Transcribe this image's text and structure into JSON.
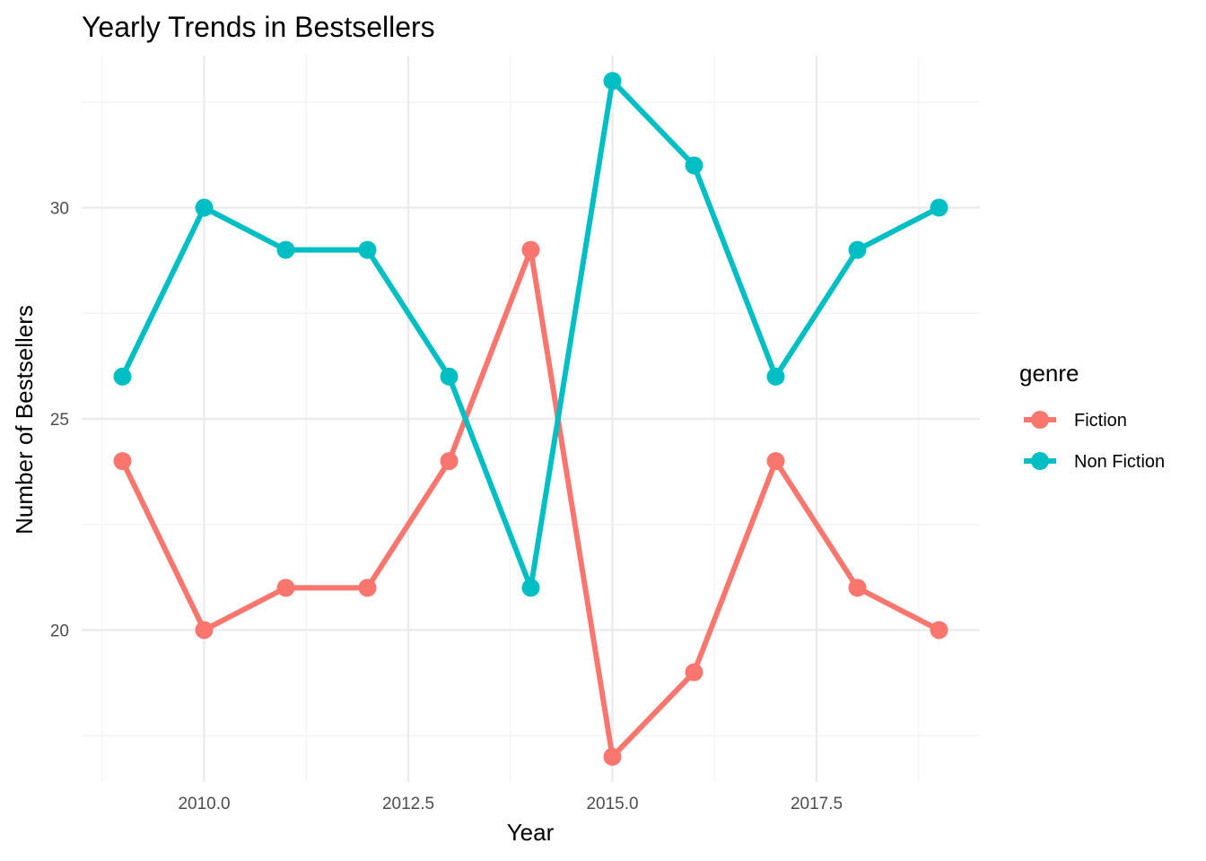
{
  "chart_data": {
    "type": "line",
    "title": "Yearly Trends in Bestsellers",
    "xlabel": "Year",
    "ylabel": "Number of Bestsellers",
    "x": [
      2009,
      2010,
      2011,
      2012,
      2013,
      2014,
      2015,
      2016,
      2017,
      2018,
      2019
    ],
    "xlim": [
      2008.5,
      2019.5
    ],
    "ylim": [
      16.4,
      33.6
    ],
    "x_ticks": [
      2010.0,
      2012.5,
      2015.0,
      2017.5
    ],
    "x_tick_labels": [
      "2010.0",
      "2012.5",
      "2015.0",
      "2017.5"
    ],
    "y_ticks": [
      20,
      25,
      30
    ],
    "y_tick_labels": [
      "20",
      "25",
      "30"
    ],
    "grid": true,
    "legend": {
      "title": "genre",
      "position": "right"
    },
    "series": [
      {
        "name": "Fiction",
        "color": "#F8766D",
        "values": [
          24,
          20,
          21,
          21,
          24,
          29,
          17,
          19,
          24,
          21,
          20
        ]
      },
      {
        "name": "Non Fiction",
        "color": "#00BFC4",
        "values": [
          26,
          30,
          29,
          29,
          26,
          21,
          33,
          31,
          26,
          29,
          30
        ]
      }
    ]
  }
}
